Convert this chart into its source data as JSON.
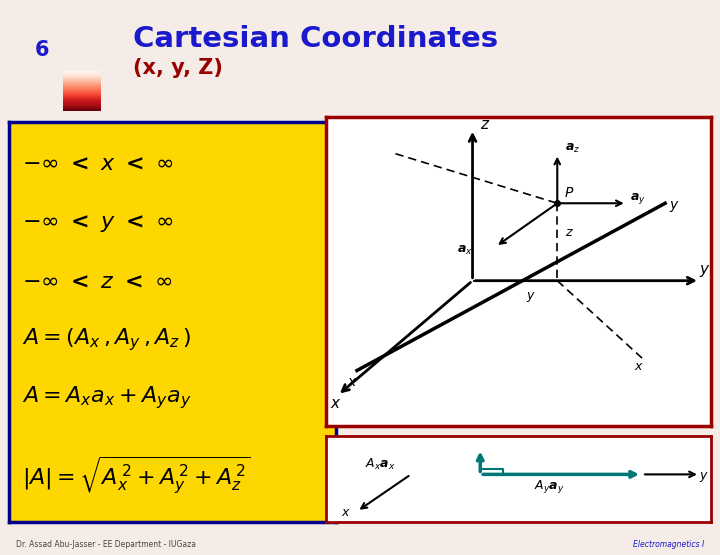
{
  "title": "Cartesian Coordinates",
  "subtitle": "(x, y, Z)",
  "slide_number": "6",
  "bg_color": "#f5ece8",
  "title_color": "#1a1acc",
  "subtitle_color": "#990000",
  "slide_num_color": "#1a1acc",
  "header_bar_color": "#6b0000",
  "yellow_box_color": "#FFD700",
  "yellow_box_border": "#00008B",
  "footer_left": "Dr. Assad Abu-Jasser - EE Department - IUGaza",
  "footer_right": "Electromagnetics I",
  "footer_color": "#444444",
  "red_border": "#990000"
}
